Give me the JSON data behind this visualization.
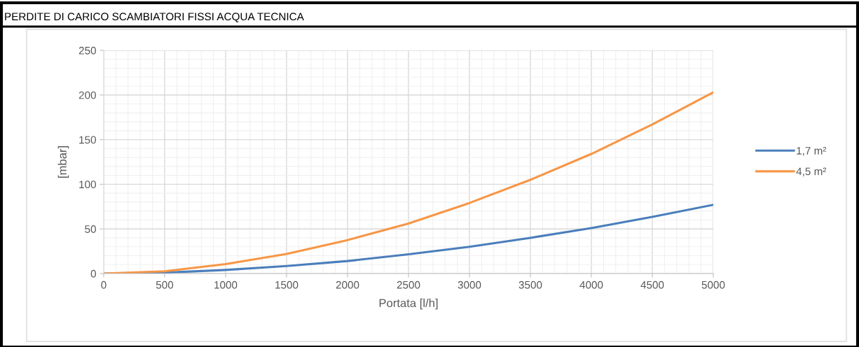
{
  "chart_data": {
    "type": "line",
    "title": "PERDITE DI CARICO SCAMBIATORI FISSI ACQUA TECNICA",
    "xlabel": "Portata [l/h]",
    "ylabel": "[mbar]",
    "x": [
      0,
      500,
      1000,
      1500,
      2000,
      2500,
      3000,
      3500,
      4000,
      4500,
      5000
    ],
    "series": [
      {
        "name": "1,7 m²",
        "color": "#4a7ebb",
        "values": [
          0,
          1,
          4,
          8.5,
          14,
          21.5,
          30,
          40,
          51,
          63.5,
          77
        ]
      },
      {
        "name": "4,5 m²",
        "color": "#f79646",
        "values": [
          0,
          2.5,
          10.5,
          22,
          37.5,
          56,
          79,
          105,
          134,
          167,
          203
        ]
      }
    ],
    "xlim": [
      0,
      5000
    ],
    "xticks": [
      0,
      500,
      1000,
      1500,
      2000,
      2500,
      3000,
      3500,
      4000,
      4500,
      5000
    ],
    "ylim": [
      0,
      250
    ],
    "yticks": [
      0,
      50,
      100,
      150,
      200,
      250
    ],
    "grid": true,
    "legend": "right",
    "marker": "none",
    "line_style": "solid"
  }
}
